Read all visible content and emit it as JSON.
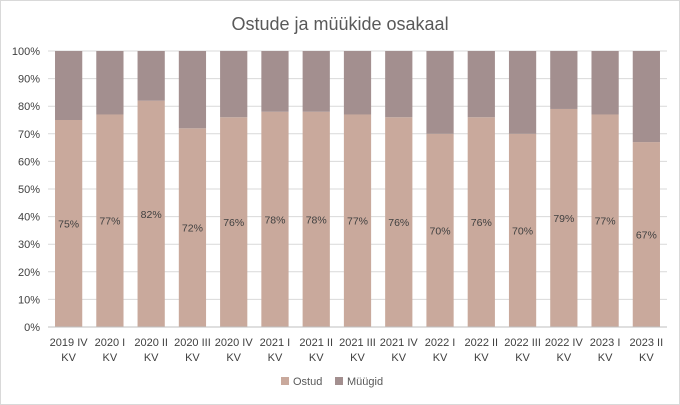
{
  "chart_data": {
    "type": "bar",
    "stacked": true,
    "percent": true,
    "title": "Ostude ja müükide osakaal",
    "categories": [
      [
        "2019 IV",
        "KV"
      ],
      [
        "2020 I",
        "KV"
      ],
      [
        "2020 II",
        "KV"
      ],
      [
        "2020 III",
        "KV"
      ],
      [
        "2020 IV",
        "KV"
      ],
      [
        "2021 I",
        "KV"
      ],
      [
        "2021 II",
        "KV"
      ],
      [
        "2021 III",
        "KV"
      ],
      [
        "2021 IV",
        "KV"
      ],
      [
        "2022 I",
        "KV"
      ],
      [
        "2022 II",
        "KV"
      ],
      [
        "2022 III",
        "KV"
      ],
      [
        "2022 IV",
        "KV"
      ],
      [
        "2023 I",
        "KV"
      ],
      [
        "2023 II",
        "KV"
      ]
    ],
    "series": [
      {
        "name": "Ostud",
        "color": "#c9a99c",
        "values": [
          75,
          77,
          82,
          72,
          76,
          78,
          78,
          77,
          76,
          70,
          76,
          70,
          79,
          77,
          67
        ],
        "data_labels": [
          "75%",
          "77%",
          "82%",
          "72%",
          "76%",
          "78%",
          "78%",
          "77%",
          "76%",
          "70%",
          "76%",
          "70%",
          "79%",
          "77%",
          "67%"
        ]
      },
      {
        "name": "Müügid",
        "color": "#a38f8f",
        "values": [
          25,
          23,
          18,
          28,
          24,
          22,
          22,
          23,
          24,
          30,
          24,
          30,
          21,
          23,
          33
        ]
      }
    ],
    "ylim": [
      0,
      100
    ],
    "yticks": [
      "0%",
      "10%",
      "20%",
      "30%",
      "40%",
      "50%",
      "60%",
      "70%",
      "80%",
      "90%",
      "100%"
    ],
    "grid": true,
    "legend": "bottom"
  }
}
